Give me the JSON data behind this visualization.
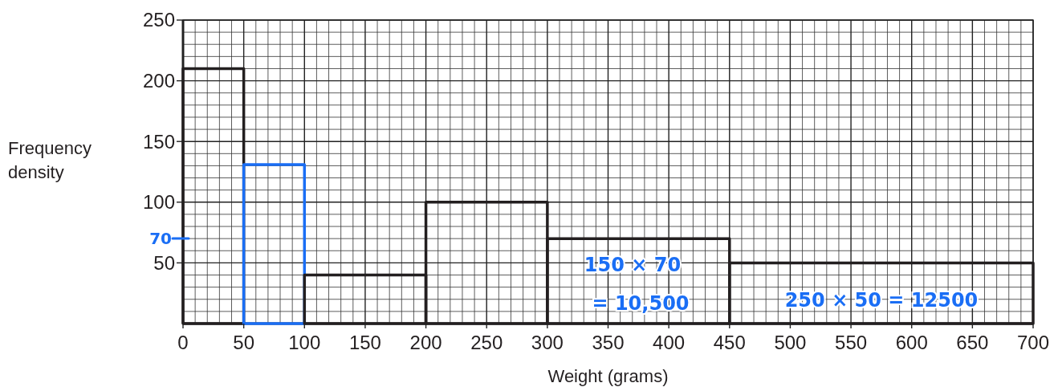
{
  "chart_data": {
    "type": "histogram",
    "xlabel": "Weight (grams)",
    "ylabel": "Frequency density",
    "bins": [
      0,
      50,
      100,
      200,
      300,
      450,
      700
    ],
    "values": [
      210,
      131,
      40,
      100,
      70,
      50
    ],
    "colors": [
      "#231f20",
      "#1a6ef5",
      "#231f20",
      "#231f20",
      "#231f20",
      "#231f20"
    ],
    "xlim": [
      0,
      700
    ],
    "xticks": [
      0,
      50,
      100,
      150,
      200,
      250,
      300,
      350,
      400,
      450,
      500,
      550,
      600,
      650,
      700
    ],
    "ylim": [
      0,
      250
    ],
    "yticks": [
      50,
      100,
      150,
      200,
      250
    ],
    "grid": true,
    "annotations": [
      "70",
      "150 × 70",
      "= 10,500",
      "250 × 50 = 12500"
    ]
  }
}
